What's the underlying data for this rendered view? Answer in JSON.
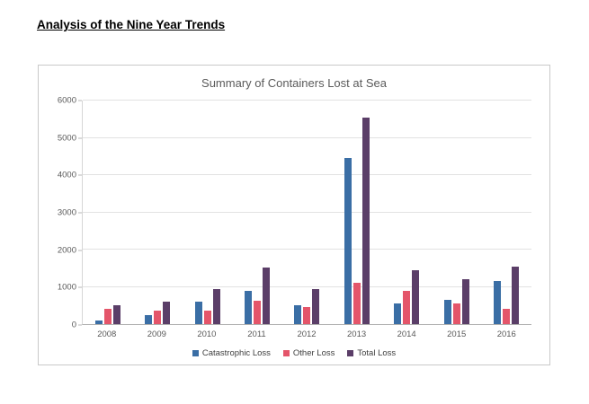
{
  "page": {
    "heading": "Analysis of the Nine Year Trends"
  },
  "chart_data": {
    "type": "bar",
    "title": "Summary of Containers Lost at Sea",
    "categories": [
      "2008",
      "2009",
      "2010",
      "2011",
      "2012",
      "2013",
      "2014",
      "2015",
      "2016"
    ],
    "series": [
      {
        "name": "Catastrophic Loss",
        "color": "#3a6ea5",
        "values": [
          100,
          250,
          600,
          900,
          500,
          4450,
          550,
          650,
          1150
        ]
      },
      {
        "name": "Other Loss",
        "color": "#e4556a",
        "values": [
          400,
          350,
          350,
          625,
          450,
          1100,
          900,
          550,
          400
        ]
      },
      {
        "name": "Total Loss",
        "color": "#5b3e68",
        "values": [
          500,
          600,
          950,
          1525,
          950,
          5550,
          1450,
          1200,
          1550
        ]
      }
    ],
    "xlabel": "",
    "ylabel": "",
    "ylim": [
      0,
      6000
    ],
    "ytick_step": 1000,
    "grid": true,
    "legend_position": "bottom"
  }
}
